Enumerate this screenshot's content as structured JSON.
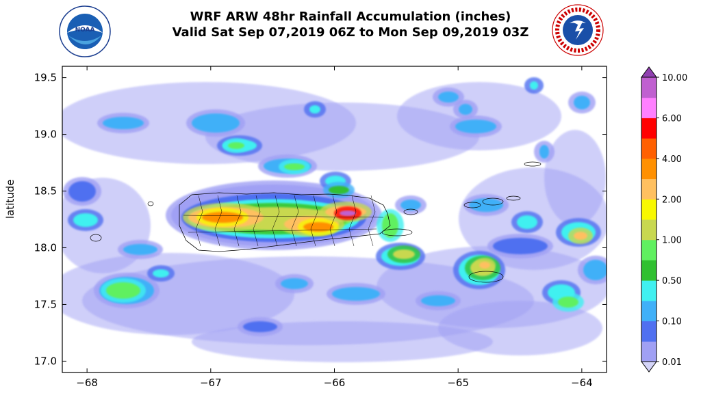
{
  "title": {
    "line1": "WRF ARW 48hr Rainfall Accumulation (inches)",
    "line2": "Valid Sat Sep 07,2019 06Z to Mon Sep 09,2019 03Z"
  },
  "logos": {
    "left": {
      "text": "NOAA",
      "ring_text": "NATIONAL OCEANIC AND ATMOSPHERIC ADMINISTRATION · U.S. DEPARTMENT OF COMMERCE"
    },
    "right": {
      "ring_text": "NATIONAL WEATHER SERVICE"
    }
  },
  "map": {
    "ylabel": "latitude",
    "xlim": [
      -68.2,
      -63.8
    ],
    "ylim": [
      16.9,
      19.6
    ],
    "xticks": [
      -68,
      -67,
      -66,
      -65,
      -64
    ],
    "xtick_labels": [
      "−68",
      "−67",
      "−66",
      "−65",
      "−64"
    ],
    "yticks": [
      17.0,
      17.5,
      18.0,
      18.5,
      19.0,
      19.5
    ],
    "ytick_labels": [
      "17.0",
      "17.5",
      "18.0",
      "18.5",
      "19.0",
      "19.5"
    ]
  },
  "colorbar": {
    "levels_labeled": [
      "0.01",
      "0.10",
      "0.50",
      "1.00",
      "2.00",
      "4.00",
      "6.00",
      "10.00"
    ],
    "colors": [
      "#d4d4f8",
      "#a0a0f4",
      "#5070f0",
      "#40b0f8",
      "#40f0f0",
      "#30c030",
      "#60f060",
      "#c8d850",
      "#f8f800",
      "#ffc060",
      "#ff9000",
      "#ff6000",
      "#ff0000",
      "#ff80ff",
      "#c060d0",
      "#9040b0"
    ]
  }
}
